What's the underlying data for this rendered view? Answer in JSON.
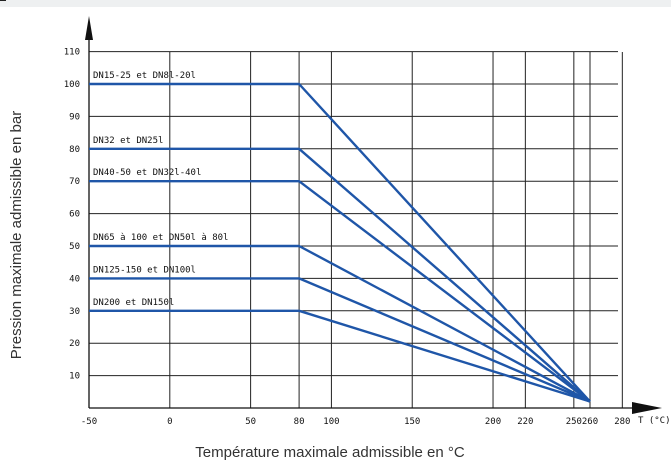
{
  "chart_data": {
    "type": "line",
    "xlabel": "Température maximale admissible en °C",
    "ylabel": "Pression maximale admissible en bar",
    "x_unit_label": "T (°C)",
    "xlim": [
      -50,
      280
    ],
    "ylim": [
      0,
      110
    ],
    "x_ticks": [
      -50,
      0,
      50,
      80,
      100,
      150,
      200,
      220,
      250,
      260,
      280
    ],
    "y_ticks": [
      10,
      20,
      30,
      40,
      50,
      60,
      70,
      80,
      90,
      100,
      110
    ],
    "grid": true,
    "legend": "inline labels",
    "line_color": "#1f56a8",
    "series": [
      {
        "name": "DN15-25 et DN8l-20l",
        "points": [
          [
            -50,
            100
          ],
          [
            80,
            100
          ],
          [
            260,
            2
          ]
        ]
      },
      {
        "name": "DN32 et DN25l",
        "points": [
          [
            -50,
            80
          ],
          [
            80,
            80
          ],
          [
            260,
            2
          ]
        ]
      },
      {
        "name": "DN40-50 et DN32l-40l",
        "points": [
          [
            -50,
            70
          ],
          [
            80,
            70
          ],
          [
            260,
            2
          ]
        ]
      },
      {
        "name": "DN65 à 100 et DN50l à 80l",
        "points": [
          [
            -50,
            50
          ],
          [
            80,
            50
          ],
          [
            260,
            2
          ]
        ]
      },
      {
        "name": "DN125-150 et DN100l",
        "points": [
          [
            -50,
            40
          ],
          [
            80,
            40
          ],
          [
            260,
            2
          ]
        ]
      },
      {
        "name": "DN200 et DN150l",
        "points": [
          [
            -50,
            30
          ],
          [
            80,
            30
          ],
          [
            260,
            2
          ]
        ]
      }
    ]
  }
}
